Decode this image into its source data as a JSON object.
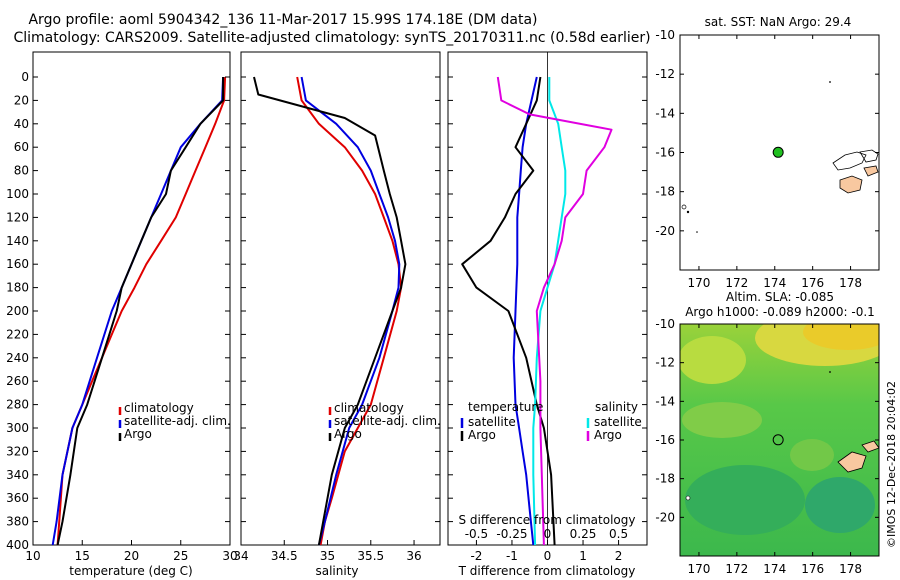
{
  "title": {
    "line1": "Argo profile: aoml 5904342_136 11-Mar-2017 15.99S 174.18E (DM data)",
    "line2": "Climatology: CARS2009. Satellite-adjusted climatology: synTS_20170311.nc (0.58d earlier)"
  },
  "colors": {
    "climatology": "#e00000",
    "satellite": "#0000e0",
    "argo": "#000000",
    "sat_salinity": "#00e8e8",
    "argo_salinity": "#e000e0"
  },
  "chart_data": [
    {
      "id": "temperature",
      "type": "line",
      "xlabel": "temperature (deg C)",
      "ylabel": "",
      "xlim": [
        10,
        30
      ],
      "ylim": [
        400,
        0
      ],
      "xticks": [
        "10",
        "15",
        "20",
        "25",
        "30"
      ],
      "xtick_values": [
        10,
        15,
        20,
        25,
        30
      ],
      "yticks": [
        "0",
        "20",
        "40",
        "60",
        "80",
        "100",
        "120",
        "140",
        "160",
        "180",
        "200",
        "220",
        "240",
        "260",
        "280",
        "300",
        "320",
        "340",
        "360",
        "380",
        "400"
      ],
      "ytick_values": [
        0,
        20,
        40,
        60,
        80,
        100,
        120,
        140,
        160,
        180,
        200,
        220,
        240,
        260,
        280,
        300,
        320,
        340,
        360,
        380,
        400
      ],
      "legend": [
        "climatology",
        "satellite-adj. clim.",
        "Argo"
      ],
      "series": [
        {
          "name": "climatology",
          "color": "#e00000",
          "x": [
            29.5,
            29.4,
            28.5,
            27.5,
            26.5,
            25.5,
            24.5,
            23,
            21.5,
            20.3,
            19,
            18,
            17,
            16,
            15,
            14,
            13,
            12.5
          ],
          "y": [
            0,
            20,
            40,
            60,
            80,
            100,
            120,
            140,
            160,
            180,
            200,
            220,
            240,
            260,
            280,
            300,
            340,
            400
          ]
        },
        {
          "name": "satellite-adj. clim.",
          "color": "#0000e0",
          "x": [
            29.3,
            29.2,
            27,
            25,
            24,
            23,
            22,
            21,
            20,
            19,
            18,
            16.5,
            15,
            14,
            13,
            12.4,
            12
          ],
          "y": [
            0,
            20,
            40,
            60,
            80,
            100,
            120,
            140,
            160,
            180,
            200,
            240,
            280,
            300,
            340,
            380,
            400
          ]
        },
        {
          "name": "Argo",
          "color": "#000000",
          "x": [
            29.3,
            29.3,
            27,
            25.5,
            24,
            23.5,
            22,
            21,
            20,
            19,
            18.5,
            17,
            15.5,
            14.5,
            13.8,
            13,
            12.5
          ],
          "y": [
            0,
            20,
            40,
            60,
            80,
            100,
            120,
            140,
            160,
            180,
            200,
            240,
            280,
            300,
            340,
            380,
            400
          ]
        }
      ]
    },
    {
      "id": "salinity",
      "type": "line",
      "xlabel": "salinity",
      "ylabel": "",
      "xlim": [
        34,
        36.3
      ],
      "ylim": [
        400,
        0
      ],
      "xticks": [
        "34",
        "34.5",
        "35",
        "35.5",
        "36"
      ],
      "xtick_values": [
        34,
        34.5,
        35,
        35.5,
        36
      ],
      "legend": [
        "climatology",
        "satellite-adj. clim.",
        "Argo"
      ],
      "series": [
        {
          "name": "climatology",
          "color": "#e00000",
          "x": [
            34.65,
            34.7,
            34.9,
            35.2,
            35.4,
            35.55,
            35.65,
            35.75,
            35.82,
            35.85,
            35.8,
            35.65,
            35.5,
            35.35,
            35.2,
            35.05,
            34.97,
            34.92
          ],
          "y": [
            0,
            20,
            40,
            60,
            80,
            100,
            120,
            140,
            160,
            180,
            200,
            240,
            280,
            300,
            320,
            360,
            380,
            400
          ]
        },
        {
          "name": "satellite-adj. clim.",
          "color": "#0000e0",
          "x": [
            34.7,
            34.75,
            35.1,
            35.35,
            35.5,
            35.6,
            35.7,
            35.78,
            35.83,
            35.82,
            35.75,
            35.6,
            35.4,
            35.25,
            35.1,
            34.97,
            34.9
          ],
          "y": [
            0,
            20,
            40,
            60,
            80,
            100,
            120,
            140,
            160,
            180,
            200,
            240,
            280,
            300,
            340,
            380,
            400
          ]
        },
        {
          "name": "Argo",
          "color": "#000000",
          "x": [
            34.15,
            34.2,
            35.2,
            35.55,
            35.65,
            35.72,
            35.8,
            35.85,
            35.9,
            35.85,
            35.75,
            35.55,
            35.35,
            35.2,
            35.05,
            34.95,
            34.9
          ],
          "y": [
            0,
            15,
            35,
            50,
            80,
            100,
            120,
            140,
            160,
            180,
            200,
            240,
            280,
            300,
            340,
            380,
            400
          ]
        }
      ]
    },
    {
      "id": "difference",
      "type": "line",
      "xlabel": "T difference from climatology",
      "top_xlabel": "S difference from climatology",
      "xlim": [
        -2.8,
        2.8
      ],
      "ylim": [
        400,
        0
      ],
      "xticks": [
        "-2",
        "-1",
        "0",
        "1",
        "2"
      ],
      "xtick_values": [
        -2,
        -1,
        0,
        1,
        2
      ],
      "top_xticks": [
        "-0.5",
        "-0.25",
        "0",
        "0.25",
        "0.5"
      ],
      "top_xtick_values": [
        -0.5,
        -0.25,
        0,
        0.25,
        0.5
      ],
      "legend_temperature_header": "temperature",
      "legend_salinity_header": "salinity",
      "legend": [
        "satellite",
        "Argo",
        "satellite",
        "Argo"
      ],
      "series": [
        {
          "name": "T satellite",
          "color": "#0000e0",
          "x": [
            -0.3,
            -0.45,
            -0.6,
            -0.7,
            -0.75,
            -0.8,
            -0.85,
            -0.85,
            -0.9,
            -0.95,
            -0.9,
            -0.8,
            -0.7,
            -0.6,
            -0.5,
            -0.4
          ],
          "y": [
            0,
            20,
            40,
            60,
            80,
            100,
            120,
            160,
            200,
            240,
            280,
            300,
            320,
            340,
            370,
            400
          ]
        },
        {
          "name": "T Argo",
          "color": "#000000",
          "x": [
            -0.2,
            -0.3,
            -0.6,
            -0.9,
            -0.4,
            -0.9,
            -1.2,
            -1.6,
            -2.4,
            -2.0,
            -1.1,
            -0.6,
            -0.3,
            -0.1,
            0.1,
            0.2
          ],
          "y": [
            0,
            20,
            40,
            60,
            80,
            100,
            120,
            140,
            160,
            180,
            200,
            240,
            280,
            300,
            340,
            400
          ]
        },
        {
          "name": "S satellite",
          "color": "#00e8e8",
          "x": [
            0.05,
            0.05,
            0.3,
            0.4,
            0.5,
            0.5,
            0.4,
            0.2,
            0.0,
            -0.2,
            -0.3,
            -0.35,
            -0.4,
            -0.4,
            -0.35
          ],
          "y": [
            0,
            20,
            40,
            60,
            80,
            100,
            120,
            160,
            180,
            200,
            240,
            280,
            300,
            340,
            400
          ]
        },
        {
          "name": "S Argo",
          "color": "#e000e0",
          "x": [
            -1.4,
            -1.3,
            -0.5,
            1.8,
            1.6,
            1.1,
            1.0,
            0.5,
            0.4,
            0.2,
            -0.1,
            -0.3,
            -0.2,
            -0.2,
            -0.1
          ],
          "y": [
            0,
            20,
            32,
            45,
            60,
            80,
            100,
            120,
            140,
            160,
            180,
            200,
            260,
            300,
            400
          ]
        }
      ]
    },
    {
      "id": "sst-map",
      "type": "scatter",
      "title": "sat. SST: NaN Argo: 29.4",
      "xlim": [
        169,
        179.5
      ],
      "ylim": [
        -22,
        -10
      ],
      "xticks": [
        "170",
        "172",
        "174",
        "176",
        "178"
      ],
      "xtick_values": [
        170,
        172,
        174,
        176,
        178
      ],
      "yticks": [
        "-10",
        "-12",
        "-14",
        "-16",
        "-18",
        "-20"
      ],
      "ytick_values": [
        -10,
        -12,
        -14,
        -16,
        -18,
        -20
      ],
      "points": [
        {
          "name": "Argo",
          "lon": 174.18,
          "lat": -15.99,
          "color": "#20c020"
        }
      ]
    },
    {
      "id": "sla-map",
      "type": "heatmap",
      "title_line1": "Altim. SLA: -0.085",
      "title_line2": "Argo h1000: -0.089 h2000: -0.1",
      "xlim": [
        169,
        179.5
      ],
      "ylim": [
        -22,
        -10
      ],
      "xticks": [
        "170",
        "172",
        "174",
        "176",
        "178"
      ],
      "xtick_values": [
        170,
        172,
        174,
        176,
        178
      ],
      "yticks": [
        "-10",
        "-12",
        "-14",
        "-16",
        "-18",
        "-20"
      ],
      "ytick_values": [
        -10,
        -12,
        -14,
        -16,
        -18,
        -20
      ],
      "points": [
        {
          "name": "Argo",
          "lon": 174.18,
          "lat": -15.99
        }
      ]
    }
  ],
  "footer": "©IMOS 12-Dec-2018 20:04:02"
}
